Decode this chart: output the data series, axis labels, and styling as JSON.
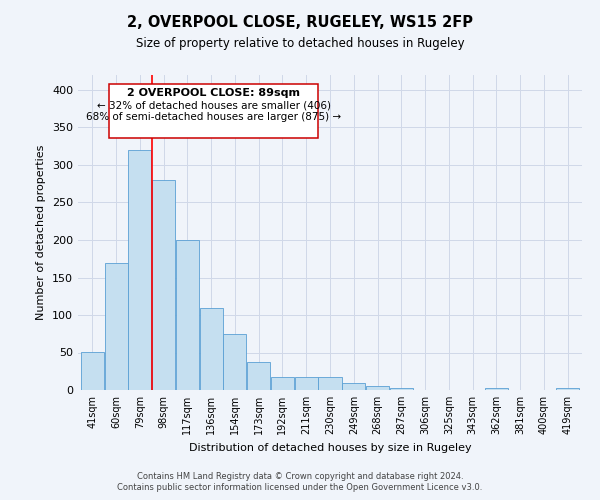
{
  "title": "2, OVERPOOL CLOSE, RUGELEY, WS15 2FP",
  "subtitle": "Size of property relative to detached houses in Rugeley",
  "xlabel": "Distribution of detached houses by size in Rugeley",
  "ylabel": "Number of detached properties",
  "bar_labels": [
    "41sqm",
    "60sqm",
    "79sqm",
    "98sqm",
    "117sqm",
    "136sqm",
    "154sqm",
    "173sqm",
    "192sqm",
    "211sqm",
    "230sqm",
    "249sqm",
    "268sqm",
    "287sqm",
    "306sqm",
    "325sqm",
    "343sqm",
    "362sqm",
    "381sqm",
    "400sqm",
    "419sqm"
  ],
  "bar_heights": [
    51,
    170,
    320,
    280,
    200,
    110,
    75,
    38,
    18,
    18,
    18,
    10,
    5,
    3,
    0,
    0,
    0,
    3,
    0,
    0,
    3
  ],
  "bar_color": "#c5dff0",
  "bar_edge_color": "#5a9fd4",
  "ylim": [
    0,
    420
  ],
  "yticks": [
    0,
    50,
    100,
    150,
    200,
    250,
    300,
    350,
    400
  ],
  "annotation_title": "2 OVERPOOL CLOSE: 89sqm",
  "annotation_line1": "← 32% of detached houses are smaller (406)",
  "annotation_line2": "68% of semi-detached houses are larger (875) →",
  "footer_line1": "Contains HM Land Registry data © Crown copyright and database right 2024.",
  "footer_line2": "Contains public sector information licensed under the Open Government Licence v3.0.",
  "bg_color": "#f0f4fa",
  "grid_color": "#d0d8e8"
}
